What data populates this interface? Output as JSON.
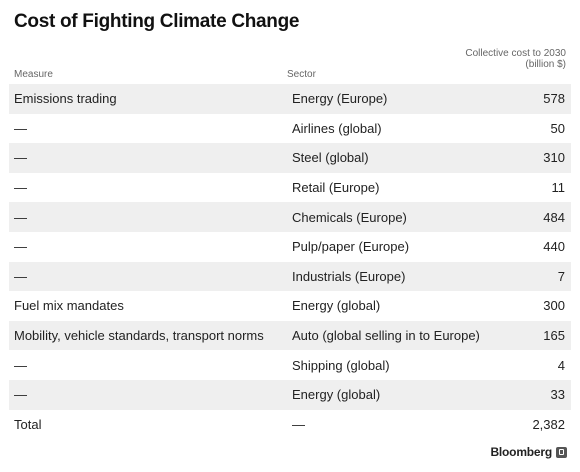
{
  "title": "Cost of Fighting Climate Change",
  "columns": {
    "measure": "Measure",
    "sector": "Sector",
    "cost": "Collective cost to 2030 (billion $)"
  },
  "brand": "Bloomberg",
  "chart_data": {
    "type": "table",
    "title": "Cost of Fighting Climate Change",
    "columns": [
      "Measure",
      "Sector",
      "Collective cost to 2030 (billion $)"
    ],
    "rows": [
      {
        "measure": "Emissions trading",
        "sector": "Energy (Europe)",
        "value": "578"
      },
      {
        "measure": "—",
        "sector": "Airlines (global)",
        "value": "50"
      },
      {
        "measure": "—",
        "sector": "Steel (global)",
        "value": "310"
      },
      {
        "measure": "—",
        "sector": "Retail (Europe)",
        "value": "11"
      },
      {
        "measure": "—",
        "sector": "Chemicals (Europe)",
        "value": "484"
      },
      {
        "measure": "—",
        "sector": "Pulp/paper (Europe)",
        "value": "440"
      },
      {
        "measure": "—",
        "sector": "Industrials (Europe)",
        "value": "7"
      },
      {
        "measure": "Fuel mix mandates",
        "sector": "Energy (global)",
        "value": "300"
      },
      {
        "measure": "Mobility, vehicle standards, transport norms",
        "sector": "Auto (global selling in to Europe)",
        "value": "165"
      },
      {
        "measure": "—",
        "sector": "Shipping (global)",
        "value": "4"
      },
      {
        "measure": "—",
        "sector": "Energy (global)",
        "value": "33"
      },
      {
        "measure": "Total",
        "sector": "—",
        "value": "2,382"
      }
    ],
    "shade_color": "#efefef"
  }
}
